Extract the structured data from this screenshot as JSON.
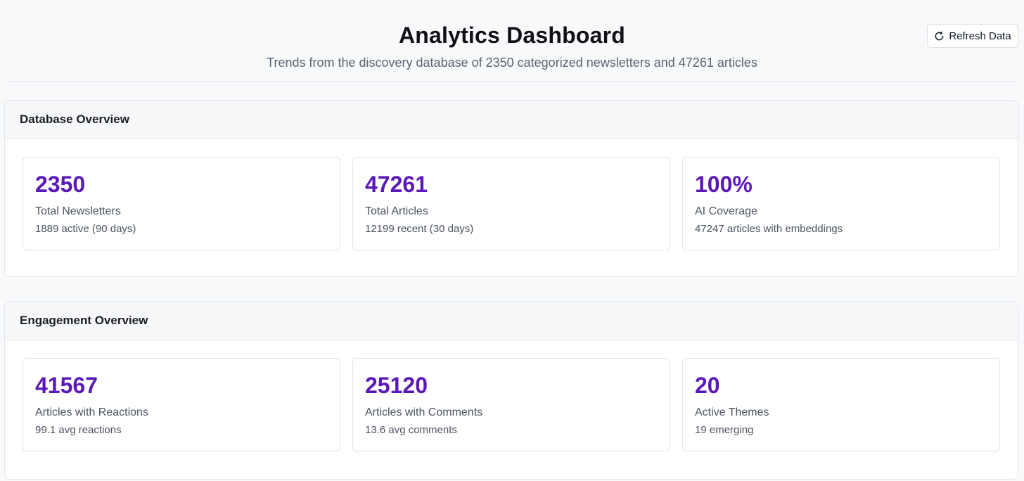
{
  "header": {
    "title": "Analytics Dashboard",
    "subtitle": "Trends from the discovery database of 2350 categorized newsletters and 47261 articles",
    "refresh_label": "Refresh Data",
    "refresh_icon": "refresh-icon"
  },
  "database_overview": {
    "title": "Database Overview",
    "cards": [
      {
        "value": "2350",
        "label": "Total Newsletters",
        "sub": "1889 active (90 days)"
      },
      {
        "value": "47261",
        "label": "Total Articles",
        "sub": "12199 recent (30 days)"
      },
      {
        "value": "100%",
        "label": "AI Coverage",
        "sub": "47247 articles with embeddings"
      }
    ]
  },
  "engagement_overview": {
    "title": "Engagement Overview",
    "cards": [
      {
        "value": "41567",
        "label": "Articles with Reactions",
        "sub": "99.1 avg reactions"
      },
      {
        "value": "25120",
        "label": "Articles with Comments",
        "sub": "13.6 avg comments"
      },
      {
        "value": "20",
        "label": "Active Themes",
        "sub": "19 emerging"
      }
    ]
  },
  "colors": {
    "accent": "#5b18b8",
    "background": "#f8f9fb",
    "panel_header": "#f7f8fa"
  }
}
